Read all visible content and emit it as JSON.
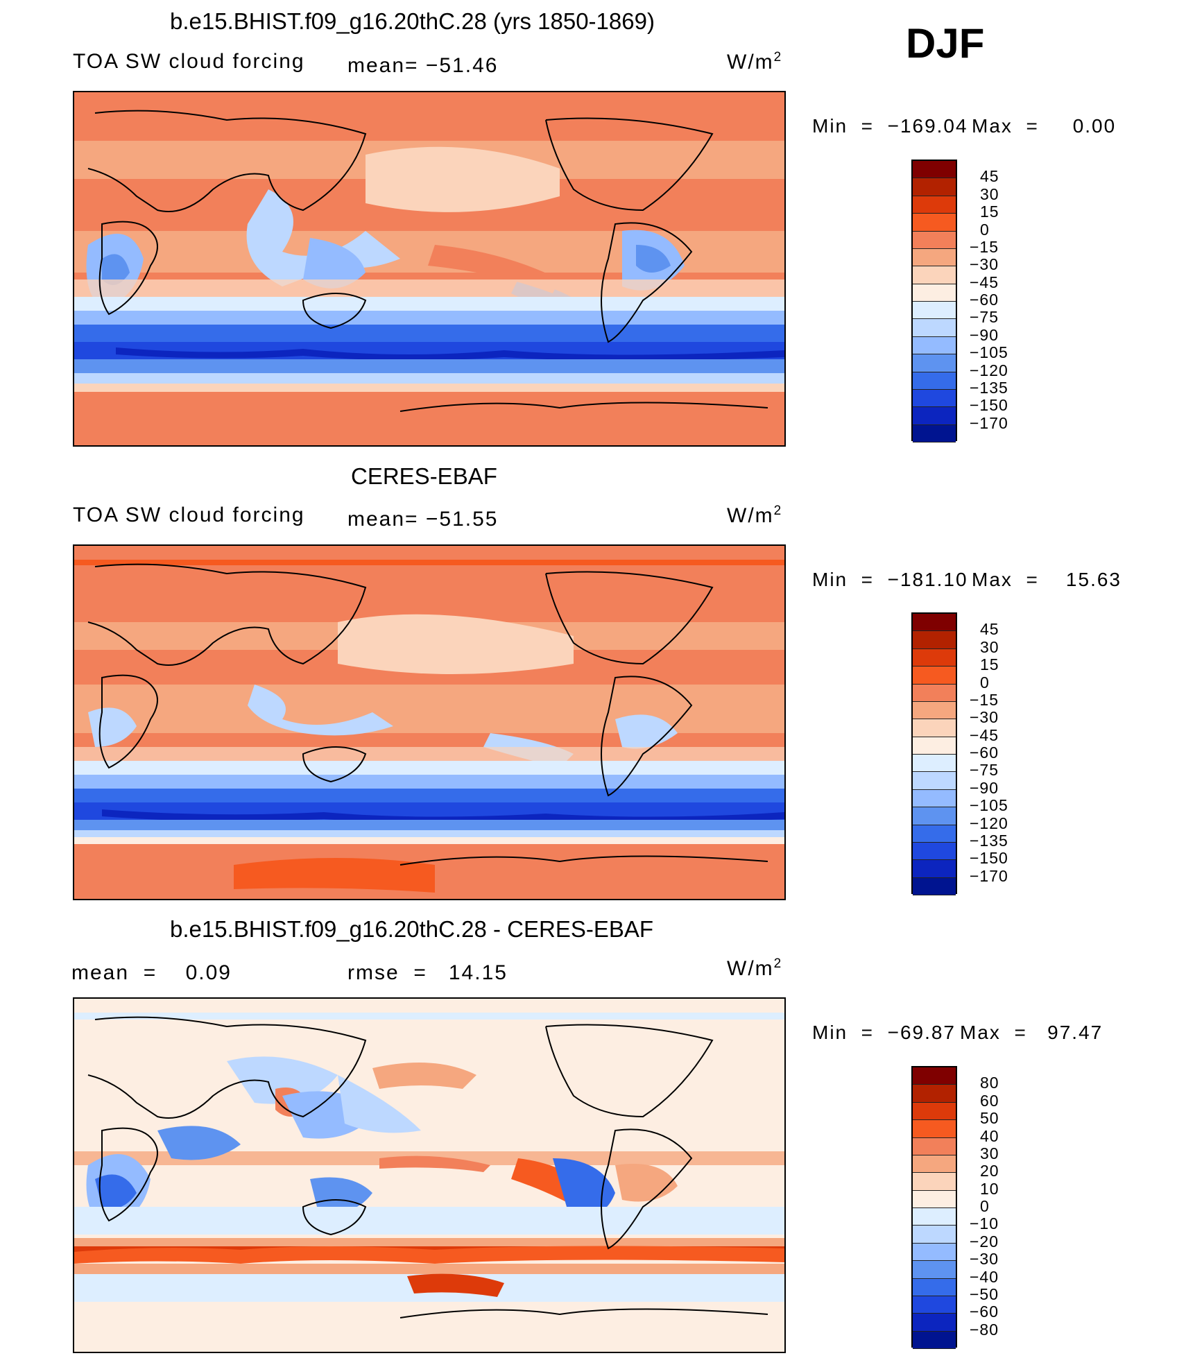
{
  "season": "DJF",
  "panels": [
    {
      "title": "b.e15.BHIST.f09_g16.20thC.28 (yrs 1850-1869)",
      "left_label": "TOA SW cloud forcing",
      "mid_label": "mean= −51.46",
      "units": "W/m",
      "units_exp": "2",
      "min_label": "Min  =  −169.04",
      "max_label": "Max  =     0.00",
      "colorbar": {
        "colors": [
          "#7f0000",
          "#b22200",
          "#dd3a0a",
          "#f65a20",
          "#f2805a",
          "#f5a77f",
          "#fbd4bb",
          "#fdeee2",
          "#ddeeff",
          "#bdd8ff",
          "#94bbff",
          "#5e93f0",
          "#356cea",
          "#1f48df",
          "#0c25bf",
          "#001490"
        ],
        "ticks": [
          "45",
          "30",
          "15",
          "0",
          "−15",
          "−30",
          "−45",
          "−60",
          "−75",
          "−90",
          "−105",
          "−120",
          "−135",
          "−150",
          "−170"
        ]
      }
    },
    {
      "title": "CERES-EBAF",
      "left_label": "TOA SW cloud forcing",
      "mid_label": "mean= −51.55",
      "units": "W/m",
      "units_exp": "2",
      "min_label": "Min  =  −181.10",
      "max_label": "Max  =    15.63",
      "colorbar": {
        "colors": [
          "#7f0000",
          "#b22200",
          "#dd3a0a",
          "#f65a20",
          "#f2805a",
          "#f5a77f",
          "#fbd4bb",
          "#fdeee2",
          "#ddeeff",
          "#bdd8ff",
          "#94bbff",
          "#5e93f0",
          "#356cea",
          "#1f48df",
          "#0c25bf",
          "#001490"
        ],
        "ticks": [
          "45",
          "30",
          "15",
          "0",
          "−15",
          "−30",
          "−45",
          "−60",
          "−75",
          "−90",
          "−105",
          "−120",
          "−135",
          "−150",
          "−170"
        ]
      }
    },
    {
      "title": "b.e15.BHIST.f09_g16.20thC.28 - CERES-EBAF",
      "left_label": "mean  =    0.09",
      "mid_label": "rmse  =   14.15",
      "units": "W/m",
      "units_exp": "2",
      "min_label": "Min  =  −69.87",
      "max_label": "Max  =   97.47",
      "colorbar": {
        "colors": [
          "#7f0000",
          "#b22200",
          "#dd3a0a",
          "#f65a20",
          "#f2805a",
          "#f5a77f",
          "#fbd4bb",
          "#fdeee2",
          "#ddeeff",
          "#bdd8ff",
          "#94bbff",
          "#5e93f0",
          "#356cea",
          "#1f48df",
          "#0c25bf",
          "#001490"
        ],
        "ticks": [
          "80",
          "60",
          "50",
          "40",
          "30",
          "20",
          "10",
          "0",
          "−10",
          "−20",
          "−30",
          "−40",
          "−50",
          "−60",
          "−80"
        ]
      }
    }
  ]
}
